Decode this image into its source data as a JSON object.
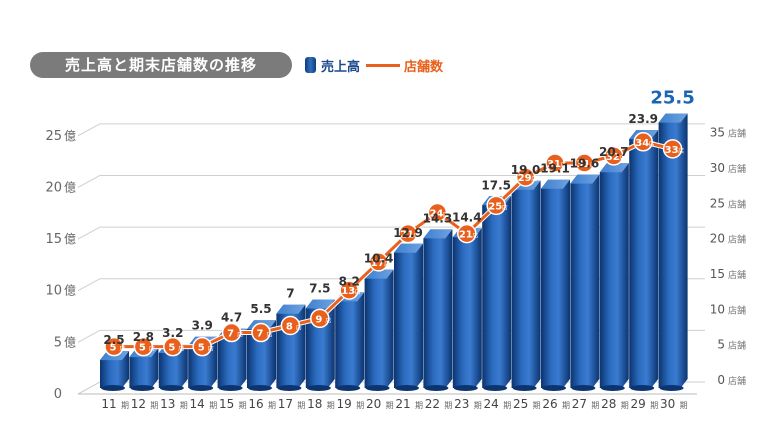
{
  "header": {
    "title": "売上高と期末店舗数の推移",
    "legend_bar": "売上高",
    "legend_line": "店舗数"
  },
  "chart_data": {
    "type": "bar",
    "categories": [
      "11",
      "12",
      "13",
      "14",
      "15",
      "16",
      "17",
      "18",
      "19",
      "20",
      "21",
      "22",
      "23",
      "24",
      "25",
      "26",
      "27",
      "28",
      "29",
      "30"
    ],
    "category_unit": "期",
    "series": [
      {
        "name": "売上高",
        "axis": "left",
        "unit": "億",
        "values": [
          2.5,
          2.8,
          3.2,
          3.9,
          4.7,
          5.5,
          7,
          7.5,
          8.2,
          10.4,
          12.9,
          14.3,
          14.4,
          17.5,
          19.0,
          19.1,
          19.6,
          20.7,
          23.9,
          25.5
        ],
        "labels": [
          "2.5",
          "2.8",
          "3.2",
          "3.9",
          "4.7",
          "5.5",
          "7",
          "7.5",
          "8.2",
          "10.4",
          "12.9",
          "14.3",
          "14.4",
          "17.5",
          "19.0",
          "19.1",
          "19.6",
          "20.7",
          "23.9",
          "25.5"
        ]
      },
      {
        "name": "店舗数",
        "axis": "right",
        "type": "line",
        "unit": "店",
        "values": [
          5,
          5,
          5,
          5,
          7,
          7,
          8,
          9,
          13,
          17,
          21,
          24,
          21,
          25,
          29,
          31,
          31,
          32,
          34,
          33
        ]
      }
    ],
    "left_axis": {
      "ticks": [
        0,
        5,
        10,
        15,
        20,
        25
      ],
      "ylim": [
        0,
        27.5
      ],
      "unit": "億"
    },
    "right_axis": {
      "ticks": [
        0,
        5,
        10,
        15,
        20,
        25,
        30,
        35
      ],
      "ylim": [
        0,
        40.2
      ],
      "unit": "店舗"
    },
    "highlight_last": true,
    "colors": {
      "bar": "#1f5aa8",
      "bar_dark": "#0d3c7e",
      "bar_light": "#4a86cf",
      "line": "#e8601c",
      "grid": "#cfcfcf",
      "highlight": "#1a66b5"
    }
  }
}
